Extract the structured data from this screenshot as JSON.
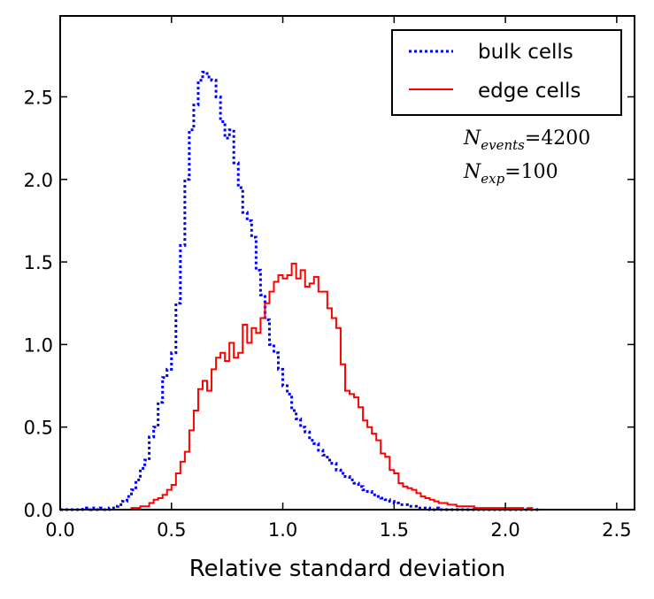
{
  "chart_data": {
    "type": "histogram",
    "title": "",
    "xlabel": "Relative standard deviation",
    "ylabel": "",
    "xlim": [
      0.0,
      2.58
    ],
    "ylim": [
      0.0,
      2.99
    ],
    "xticks": [
      0.0,
      0.5,
      1.0,
      1.5,
      2.0,
      2.5
    ],
    "xtick_labels": [
      "0.0",
      "0.5",
      "1.0",
      "1.5",
      "2.0",
      "2.5"
    ],
    "yticks": [
      0.0,
      0.5,
      1.0,
      1.5,
      2.0,
      2.5
    ],
    "ytick_labels": [
      "0.0",
      "0.5",
      "1.0",
      "1.5",
      "2.0",
      "2.5"
    ],
    "grid": false,
    "legend_position": "top-right",
    "bin_width": 0.02,
    "x_start": 0.0,
    "series": [
      {
        "name": "bulk cells",
        "style": "dotted",
        "color": "#0000ff",
        "values": [
          0.0,
          0.0,
          0.0,
          0.0,
          0.0,
          0.01,
          0.0,
          0.01,
          0.0,
          0.01,
          0.0,
          0.01,
          0.02,
          0.03,
          0.05,
          0.08,
          0.12,
          0.18,
          0.25,
          0.3,
          0.44,
          0.5,
          0.65,
          0.8,
          0.85,
          0.95,
          1.25,
          1.6,
          2.0,
          2.3,
          2.45,
          2.6,
          2.65,
          2.62,
          2.6,
          2.5,
          2.35,
          2.25,
          2.3,
          2.1,
          1.95,
          1.8,
          1.75,
          1.65,
          1.45,
          1.3,
          1.15,
          1.0,
          0.95,
          0.85,
          0.75,
          0.7,
          0.6,
          0.55,
          0.5,
          0.47,
          0.42,
          0.4,
          0.36,
          0.33,
          0.3,
          0.28,
          0.24,
          0.22,
          0.2,
          0.18,
          0.16,
          0.14,
          0.12,
          0.11,
          0.09,
          0.08,
          0.07,
          0.06,
          0.05,
          0.04,
          0.03,
          0.03,
          0.02,
          0.02,
          0.01,
          0.01,
          0.01,
          0.0,
          0.01,
          0.0,
          0.0,
          0.0,
          0.0,
          0.0,
          0.0,
          0.0,
          0.0,
          0.0,
          0.0,
          0.0,
          0.0,
          0.0,
          0.0,
          0.0,
          0.0,
          0.0,
          0.0,
          0.0,
          0.0,
          0.0,
          0.0,
          0.0
        ]
      },
      {
        "name": "edge cells",
        "style": "solid",
        "color": "#ff0000",
        "values": [
          0.0,
          0.0,
          0.0,
          0.0,
          0.0,
          0.0,
          0.0,
          0.0,
          0.0,
          0.0,
          0.0,
          0.0,
          0.0,
          0.0,
          0.0,
          0.0,
          0.01,
          0.01,
          0.02,
          0.02,
          0.04,
          0.06,
          0.07,
          0.09,
          0.12,
          0.15,
          0.22,
          0.29,
          0.35,
          0.48,
          0.6,
          0.73,
          0.78,
          0.72,
          0.85,
          0.92,
          0.95,
          0.9,
          1.01,
          0.92,
          0.95,
          1.12,
          1.01,
          1.1,
          1.07,
          1.16,
          1.25,
          1.32,
          1.38,
          1.42,
          1.4,
          1.42,
          1.49,
          1.4,
          1.45,
          1.35,
          1.37,
          1.41,
          1.32,
          1.32,
          1.22,
          1.16,
          1.1,
          0.88,
          0.72,
          0.7,
          0.68,
          0.62,
          0.54,
          0.5,
          0.46,
          0.42,
          0.34,
          0.32,
          0.24,
          0.22,
          0.16,
          0.14,
          0.13,
          0.12,
          0.1,
          0.08,
          0.07,
          0.06,
          0.05,
          0.04,
          0.04,
          0.03,
          0.03,
          0.02,
          0.02,
          0.02,
          0.02,
          0.01,
          0.01,
          0.01,
          0.01,
          0.01,
          0.01,
          0.01,
          0.01,
          0.01,
          0.01,
          0.01,
          0.0,
          0.01,
          0.0,
          0.0
        ]
      }
    ],
    "annotations": [
      {
        "base": "N",
        "sub": "events",
        "rel": "=",
        "value": "4200"
      },
      {
        "base": "N",
        "sub": "exp",
        "rel": "=",
        "value": "100"
      }
    ]
  }
}
